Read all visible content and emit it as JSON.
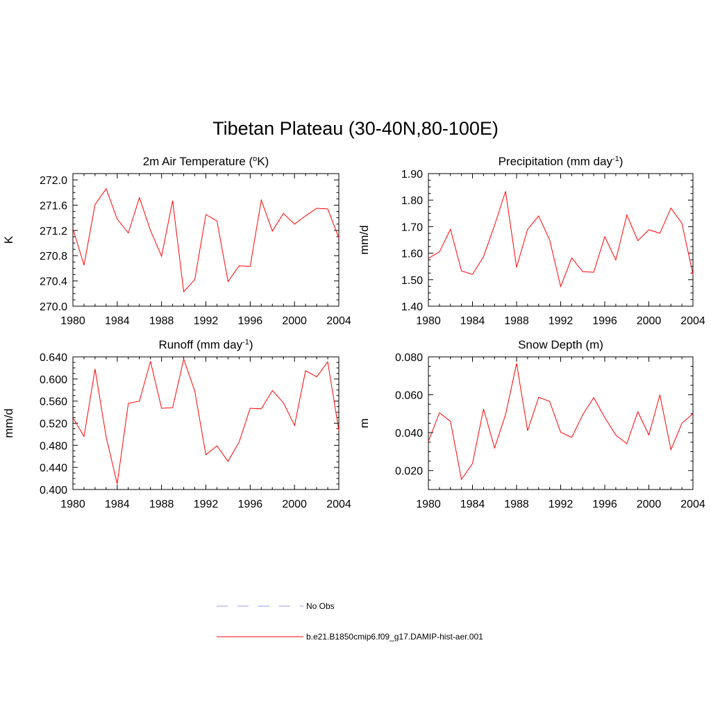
{
  "page_title": "Tibetan Plateau (30-40N,80-100E)",
  "legend": {
    "entries": [
      {
        "label": "No Obs",
        "color": "#9999ee",
        "style": "dashed"
      },
      {
        "label": "b.e21.B1850cmip6.f09_g17.DAMIP-hist-aer.001",
        "color": "#ff0000",
        "style": "solid"
      }
    ]
  },
  "chart_data": [
    {
      "type": "line",
      "title": "2m Air Temperature (",
      "title_sup": "o",
      "title_tail": "K)",
      "ylabel": "K",
      "xlim": [
        1980,
        2004
      ],
      "ylim": [
        270.0,
        272.1
      ],
      "xticks": [
        1980,
        1984,
        1988,
        1992,
        1996,
        2000,
        2004
      ],
      "yticks": [
        270.0,
        270.4,
        270.8,
        271.2,
        271.6,
        272.0
      ],
      "ytick_labels": [
        "270.0",
        "270.4",
        "270.8",
        "271.2",
        "271.6",
        "272.0"
      ],
      "series": [
        {
          "color": "#ff0000",
          "x": [
            1980,
            1981,
            1982,
            1983,
            1984,
            1985,
            1986,
            1987,
            1988,
            1989,
            1990,
            1991,
            1992,
            1993,
            1994,
            1995,
            1996,
            1997,
            1998,
            1999,
            2000,
            2001,
            2002,
            2003,
            2004
          ],
          "values": [
            271.23,
            270.65,
            271.61,
            271.86,
            271.38,
            271.16,
            271.72,
            271.2,
            270.79,
            271.67,
            270.23,
            270.42,
            271.45,
            271.35,
            270.39,
            270.64,
            270.63,
            271.68,
            271.19,
            271.47,
            271.3,
            271.43,
            271.55,
            271.54,
            271.08
          ]
        }
      ]
    },
    {
      "type": "line",
      "title": "Precipitation (mm day",
      "title_sup": "-1",
      "title_tail": ")",
      "ylabel": "mm/d",
      "xlim": [
        1980,
        2004
      ],
      "ylim": [
        1.4,
        1.9
      ],
      "xticks": [
        1980,
        1984,
        1988,
        1992,
        1996,
        2000,
        2004
      ],
      "yticks": [
        1.4,
        1.5,
        1.6,
        1.7,
        1.8,
        1.9
      ],
      "ytick_labels": [
        "1.40",
        "1.50",
        "1.60",
        "1.70",
        "1.80",
        "1.90"
      ],
      "series": [
        {
          "color": "#ff0000",
          "x": [
            1980,
            1981,
            1982,
            1983,
            1984,
            1985,
            1986,
            1987,
            1988,
            1989,
            1990,
            1991,
            1992,
            1993,
            1994,
            1995,
            1996,
            1997,
            1998,
            1999,
            2000,
            2001,
            2002,
            2003,
            2004
          ],
          "values": [
            1.58,
            1.605,
            1.69,
            1.533,
            1.52,
            1.587,
            1.705,
            1.833,
            1.547,
            1.69,
            1.74,
            1.65,
            1.474,
            1.582,
            1.53,
            1.528,
            1.662,
            1.574,
            1.744,
            1.647,
            1.688,
            1.675,
            1.77,
            1.713,
            1.52
          ]
        }
      ]
    },
    {
      "type": "line",
      "title": "Runoff (mm day",
      "title_sup": "-1",
      "title_tail": ")",
      "ylabel": "mm/d",
      "xlim": [
        1980,
        2004
      ],
      "ylim": [
        0.4,
        0.64
      ],
      "xticks": [
        1980,
        1984,
        1988,
        1992,
        1996,
        2000,
        2004
      ],
      "yticks": [
        0.4,
        0.44,
        0.48,
        0.52,
        0.56,
        0.6,
        0.64
      ],
      "ytick_labels": [
        "0.400",
        "0.440",
        "0.480",
        "0.520",
        "0.560",
        "0.600",
        "0.640"
      ],
      "series": [
        {
          "color": "#ff0000",
          "x": [
            1980,
            1981,
            1982,
            1983,
            1984,
            1985,
            1986,
            1987,
            1988,
            1989,
            1990,
            1991,
            1992,
            1993,
            1994,
            1995,
            1996,
            1997,
            1998,
            1999,
            2000,
            2001,
            2002,
            2003,
            2004
          ],
          "values": [
            0.53,
            0.496,
            0.618,
            0.495,
            0.41,
            0.556,
            0.56,
            0.632,
            0.547,
            0.548,
            0.636,
            0.578,
            0.463,
            0.479,
            0.451,
            0.486,
            0.547,
            0.546,
            0.579,
            0.557,
            0.516,
            0.615,
            0.604,
            0.631,
            0.507
          ]
        }
      ]
    },
    {
      "type": "line",
      "title": "Snow Depth (m)",
      "title_sup": "",
      "title_tail": "",
      "ylabel": "m",
      "xlim": [
        1980,
        2004
      ],
      "ylim": [
        0.01,
        0.08
      ],
      "xticks": [
        1980,
        1984,
        1988,
        1992,
        1996,
        2000,
        2004
      ],
      "yticks": [
        0.02,
        0.04,
        0.06,
        0.08
      ],
      "ytick_labels": [
        "0.020",
        "0.040",
        "0.060",
        "0.080"
      ],
      "series": [
        {
          "color": "#ff0000",
          "x": [
            1980,
            1981,
            1982,
            1983,
            1984,
            1985,
            1986,
            1987,
            1988,
            1989,
            1990,
            1991,
            1992,
            1993,
            1994,
            1995,
            1996,
            1997,
            1998,
            1999,
            2000,
            2001,
            2002,
            2003,
            2004
          ],
          "values": [
            0.0355,
            0.0505,
            0.046,
            0.0153,
            0.0237,
            0.0525,
            0.032,
            0.0495,
            0.0765,
            0.041,
            0.0587,
            0.0565,
            0.0402,
            0.0375,
            0.0495,
            0.0585,
            0.048,
            0.0387,
            0.0342,
            0.051,
            0.0388,
            0.06,
            0.031,
            0.045,
            0.05
          ]
        }
      ]
    }
  ]
}
